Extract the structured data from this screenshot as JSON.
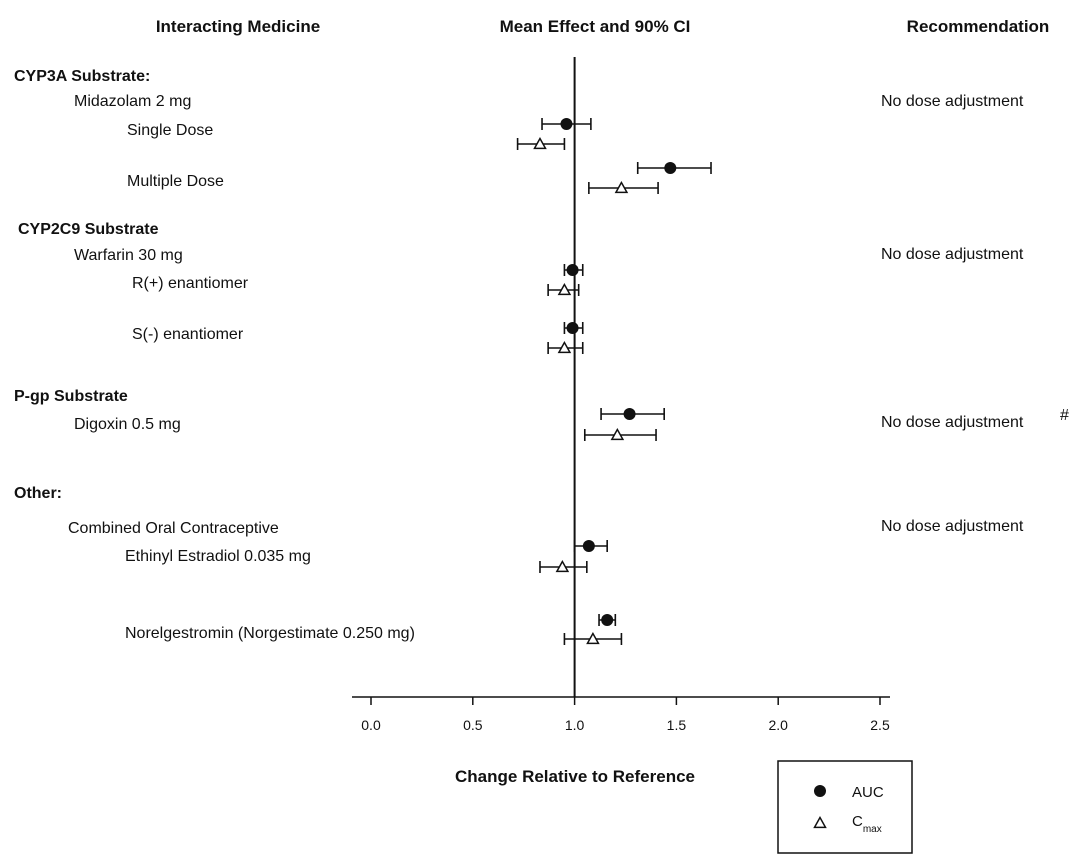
{
  "chart_data": {
    "type": "scatter",
    "title": "",
    "headers": {
      "left": "Interacting Medicine",
      "center": "Mean Effect and 90% CI",
      "right": "Recommendation"
    },
    "xlabel": "Change Relative to Reference",
    "xlim": [
      0.0,
      2.5
    ],
    "xticks": [
      "0.0",
      "0.5",
      "1.0",
      "1.5",
      "2.0",
      "2.5"
    ],
    "reference_line": 1.0,
    "legend": {
      "placement": "bottom-right",
      "entries": [
        {
          "label": "AUC",
          "marker": "filled-circle"
        },
        {
          "label": "C",
          "subscript": "max",
          "marker": "open-triangle"
        }
      ]
    },
    "rows": [
      {
        "kind": "group",
        "label": "CYP3A Substrate:"
      },
      {
        "kind": "drug",
        "label": "Midazolam 2 mg",
        "recommendation": "No dose adjustment"
      },
      {
        "kind": "sub",
        "label": "Single Dose",
        "auc": {
          "mean": 0.96,
          "lo": 0.84,
          "hi": 1.08
        },
        "cmax": {
          "mean": 0.83,
          "lo": 0.72,
          "hi": 0.95
        }
      },
      {
        "kind": "sub",
        "label": "Multiple Dose",
        "auc": {
          "mean": 1.47,
          "lo": 1.31,
          "hi": 1.67
        },
        "cmax": {
          "mean": 1.23,
          "lo": 1.07,
          "hi": 1.41
        }
      },
      {
        "kind": "group",
        "label": "CYP2C9 Substrate"
      },
      {
        "kind": "drug",
        "label": "Warfarin 30 mg",
        "recommendation": "No dose adjustment"
      },
      {
        "kind": "sub",
        "label": "R(+) enantiomer",
        "auc": {
          "mean": 0.99,
          "lo": 0.95,
          "hi": 1.04
        },
        "cmax": {
          "mean": 0.95,
          "lo": 0.87,
          "hi": 1.02
        }
      },
      {
        "kind": "sub",
        "label": "S(-) enantiomer",
        "auc": {
          "mean": 0.99,
          "lo": 0.95,
          "hi": 1.04
        },
        "cmax": {
          "mean": 0.95,
          "lo": 0.87,
          "hi": 1.04
        }
      },
      {
        "kind": "group",
        "label": "P-gp Substrate"
      },
      {
        "kind": "drug",
        "label": "Digoxin 0.5 mg",
        "recommendation": "No dose adjustment",
        "recommendation_note": "#",
        "auc": {
          "mean": 1.27,
          "lo": 1.13,
          "hi": 1.44
        },
        "cmax": {
          "mean": 1.21,
          "lo": 1.05,
          "hi": 1.4
        }
      },
      {
        "kind": "group",
        "label": "Other:"
      },
      {
        "kind": "drug",
        "label": "Combined Oral Contraceptive",
        "recommendation": "No dose adjustment"
      },
      {
        "kind": "sub",
        "label": "Ethinyl Estradiol 0.035 mg",
        "auc": {
          "mean": 1.07,
          "lo": 1.0,
          "hi": 1.16
        },
        "cmax": {
          "mean": 0.94,
          "lo": 0.83,
          "hi": 1.06
        }
      },
      {
        "kind": "sub",
        "label": "Norelgestromin (Norgestimate 0.250 mg)",
        "auc": {
          "mean": 1.16,
          "lo": 1.12,
          "hi": 1.2
        },
        "cmax": {
          "mean": 1.09,
          "lo": 0.95,
          "hi": 1.23
        }
      }
    ]
  }
}
